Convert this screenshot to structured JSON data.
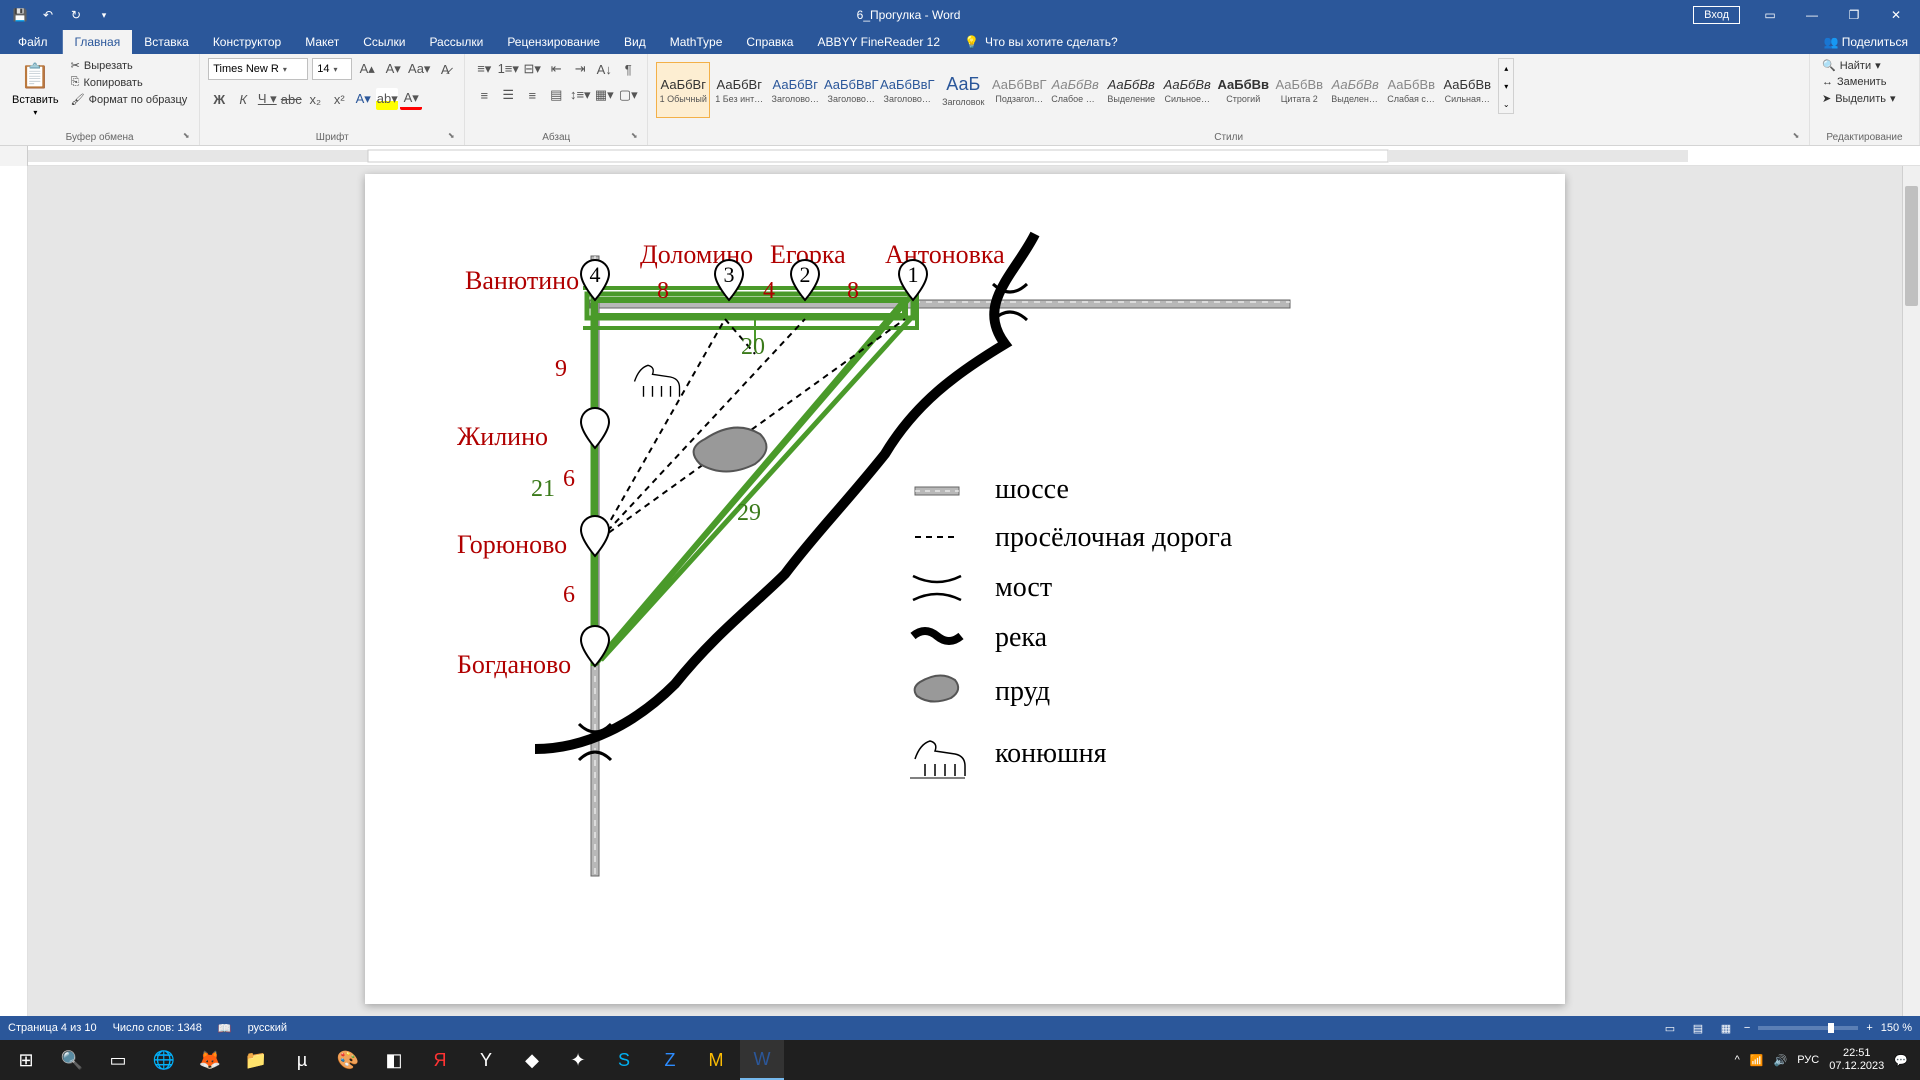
{
  "app": {
    "title": "6_Прогулка - Word"
  },
  "titlebar": {
    "signin": "Вход"
  },
  "tabs": {
    "file": "Файл",
    "items": [
      "Главная",
      "Вставка",
      "Конструктор",
      "Макет",
      "Ссылки",
      "Рассылки",
      "Рецензирование",
      "Вид",
      "MathType",
      "Справка",
      "ABBYY FineReader 12"
    ],
    "active": 0,
    "tellme": "Что вы хотите сделать?",
    "share": "Поделиться"
  },
  "ribbon": {
    "clipboard": {
      "paste": "Вставить",
      "cut": "Вырезать",
      "copy": "Копировать",
      "format_painter": "Формат по образцу",
      "label": "Буфер обмена"
    },
    "font": {
      "family": "Times New R",
      "size": "14",
      "label": "Шрифт"
    },
    "paragraph": {
      "label": "Абзац"
    },
    "styles": {
      "label": "Стили",
      "items": [
        {
          "preview": "АаБбВг",
          "name": "1 Обычный",
          "selected": true
        },
        {
          "preview": "АаБбВг",
          "name": "1 Без инте…"
        },
        {
          "preview": "АаБбВг",
          "name": "Заголово…",
          "color": "#2b579a"
        },
        {
          "preview": "АаБбВвГ",
          "name": "Заголово…",
          "color": "#2b579a"
        },
        {
          "preview": "АаБбВвГ",
          "name": "Заголово…",
          "color": "#2b579a"
        },
        {
          "preview": "АаБ",
          "name": "Заголовок",
          "big": true
        },
        {
          "preview": "АаБбВвГ",
          "name": "Подзагол…",
          "color": "#888"
        },
        {
          "preview": "АаБбВв",
          "name": "Слабое в…",
          "color": "#888",
          "italic": true
        },
        {
          "preview": "АаБбВв",
          "name": "Выделение",
          "italic": true
        },
        {
          "preview": "АаБбВв",
          "name": "Сильное…",
          "italic": true
        },
        {
          "preview": "АаБбВв",
          "name": "Строгий",
          "bold": true
        },
        {
          "preview": "АаБбВв",
          "name": "Цитата 2",
          "color": "#888"
        },
        {
          "preview": "АаБбВв",
          "name": "Выделенн…",
          "italic": true,
          "color": "#888"
        },
        {
          "preview": "АаБбВв",
          "name": "Слабая сс…",
          "color": "#888"
        },
        {
          "preview": "АаБбВв",
          "name": "Сильная…"
        }
      ]
    },
    "editing": {
      "find": "Найти",
      "replace": "Заменить",
      "select": "Выделить",
      "label": "Редактирование"
    }
  },
  "statusbar": {
    "page": "Страница 4 из 10",
    "words": "Число слов: 1348",
    "lang": "русский",
    "zoom": "150 %"
  },
  "tray": {
    "lang": "РУС",
    "time": "22:51",
    "date": "07.12.2023"
  },
  "diagram": {
    "villages": {
      "vanyutino": "Ванютино",
      "dolomino": "Доломино",
      "egorka": "Егорка",
      "antonovka": "Антоновка",
      "zhilino": "Жилино",
      "goryunovo": "Горюново",
      "bogdanovo": "Богданово"
    },
    "pins": [
      "1",
      "2",
      "3",
      "4"
    ],
    "distances": {
      "d8a": "8",
      "d4": "4",
      "d8b": "8",
      "d9": "9",
      "d20": "20",
      "d6a": "6",
      "d21": "21",
      "d6b": "6",
      "d29": "29"
    },
    "legend": {
      "highway": "шоссе",
      "dirt_road": "просёлочная дорога",
      "bridge": "мост",
      "river": "река",
      "pond": "пруд",
      "stable": "конюшня"
    },
    "colors": {
      "village_text": "#b00000",
      "green_road": "#4a9a2a",
      "river": "#000000",
      "highway_fill": "#b8b8b8"
    }
  }
}
